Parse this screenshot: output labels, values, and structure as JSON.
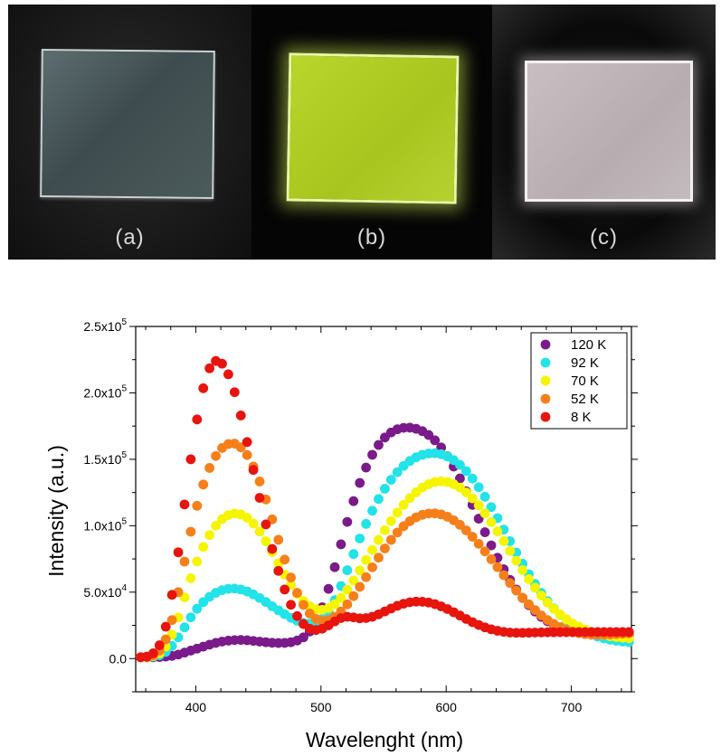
{
  "photos": {
    "panels": [
      {
        "label": "(a)"
      },
      {
        "label": "(b)"
      },
      {
        "label": "(c)"
      }
    ]
  },
  "chart_data": {
    "type": "scatter",
    "xlabel": "Wavelenght (nm)",
    "ylabel": "Intensity (a.u.)",
    "xlim": [
      352,
      748
    ],
    "ylim": [
      -25000,
      250000
    ],
    "x_ticks": [
      400,
      500,
      600,
      700
    ],
    "x_tick_labels": [
      "400",
      "500",
      "600",
      "700"
    ],
    "y_ticks": [
      0,
      50000,
      100000,
      150000,
      200000,
      250000
    ],
    "y_tick_labels": [
      {
        "mantissa": "0.0",
        "exponent": ""
      },
      {
        "mantissa": "5.0x10",
        "exponent": "4"
      },
      {
        "mantissa": "1.0x10",
        "exponent": "5"
      },
      {
        "mantissa": "1.5x10",
        "exponent": "5"
      },
      {
        "mantissa": "2.0x10",
        "exponent": "5"
      },
      {
        "mantissa": "2.5x10",
        "exponent": "5"
      }
    ],
    "legend_position": "top-right",
    "grid": false,
    "x": [
      356,
      361,
      366,
      371,
      376,
      381,
      386,
      391,
      396,
      401,
      406,
      411,
      416,
      421,
      426,
      431,
      436,
      441,
      446,
      451,
      456,
      461,
      466,
      471,
      476,
      481,
      486,
      491,
      496,
      501,
      506,
      511,
      516,
      521,
      526,
      531,
      536,
      541,
      546,
      551,
      556,
      561,
      566,
      571,
      576,
      581,
      586,
      591,
      596,
      601,
      606,
      611,
      616,
      621,
      626,
      631,
      636,
      641,
      646,
      651,
      656,
      661,
      666,
      671,
      676,
      681,
      686,
      691,
      696,
      701,
      706,
      711,
      716,
      721,
      726,
      731,
      736,
      741,
      746
    ],
    "series": [
      {
        "name": "120 K",
        "color": "#7b1a8a",
        "values": [
          1000,
          1000,
          1000,
          1200,
          1500,
          2000,
          3000,
          4500,
          6000,
          7500,
          9000,
          10500,
          11800,
          12800,
          13500,
          13900,
          14000,
          13800,
          13300,
          12800,
          12300,
          11900,
          11700,
          11800,
          12300,
          13600,
          16000,
          20400,
          27800,
          38600,
          52500,
          68800,
          86000,
          102900,
          118500,
          132200,
          143800,
          153400,
          160800,
          166400,
          170200,
          172600,
          173700,
          173800,
          173000,
          171200,
          168300,
          164300,
          158900,
          152300,
          144500,
          135600,
          125900,
          115700,
          105300,
          95100,
          85200,
          75900,
          67200,
          59200,
          52000,
          45700,
          40200,
          35400,
          31400,
          28100,
          25400,
          23200,
          21500,
          20200,
          19300,
          18600,
          18100,
          17800,
          17600,
          17400,
          17300,
          17300,
          17200
        ]
      },
      {
        "name": "92 K",
        "color": "#22e3e8",
        "values": [
          1000,
          1000,
          1500,
          2500,
          5000,
          9500,
          16000,
          23500,
          31000,
          37500,
          42500,
          46500,
          49500,
          51500,
          52500,
          52700,
          52000,
          50500,
          48300,
          45600,
          42600,
          39400,
          36300,
          33400,
          30700,
          28500,
          26900,
          26300,
          27200,
          30000,
          35600,
          44000,
          54600,
          66500,
          78700,
          90400,
          101400,
          111300,
          120100,
          127900,
          134600,
          140300,
          145000,
          148700,
          151500,
          153400,
          154400,
          154600,
          153800,
          152100,
          149400,
          145800,
          141100,
          135500,
          129000,
          121800,
          114000,
          105700,
          97100,
          88400,
          79800,
          71400,
          63500,
          56200,
          49400,
          43300,
          37800,
          33000,
          28900,
          25400,
          22500,
          20100,
          18100,
          16500,
          15200,
          14200,
          13400,
          12800,
          12400
        ]
      },
      {
        "name": "70 K",
        "color": "#f5f500",
        "values": [
          1000,
          1000,
          2000,
          4000,
          9000,
          18000,
          31000,
          46000,
          60500,
          73000,
          84000,
          93000,
          100000,
          105000,
          108000,
          109200,
          108500,
          106000,
          101600,
          95600,
          88300,
          80200,
          71600,
          63200,
          55500,
          48700,
          43300,
          39400,
          37200,
          36700,
          38000,
          41000,
          45700,
          51800,
          58800,
          66400,
          74200,
          81800,
          89300,
          96600,
          103500,
          109900,
          115700,
          120800,
          125200,
          128700,
          131300,
          132900,
          133400,
          132900,
          131300,
          128700,
          125100,
          120600,
          115300,
          109300,
          102700,
          95700,
          88400,
          81000,
          73700,
          66600,
          59800,
          53400,
          47500,
          42200,
          37400,
          33200,
          29600,
          26500,
          24000,
          21900,
          20200,
          18800,
          17700,
          16800,
          16200,
          15700,
          15300
        ]
      },
      {
        "name": "52 K",
        "color": "#f77f1a",
        "values": [
          1000,
          1000,
          2500,
          6000,
          14500,
          29000,
          50000,
          73000,
          95500,
          115000,
          131000,
          143500,
          152500,
          158500,
          161500,
          161800,
          159000,
          153200,
          144600,
          133300,
          119800,
          104800,
          89400,
          74500,
          61000,
          49500,
          40400,
          33900,
          29900,
          28400,
          29000,
          31500,
          35500,
          40800,
          47000,
          54000,
          61300,
          68700,
          76000,
          82900,
          89300,
          94900,
          99600,
          103400,
          106300,
          108200,
          109200,
          109300,
          108500,
          106800,
          104100,
          100700,
          96500,
          91700,
          86400,
          80700,
          74800,
          68800,
          62800,
          56900,
          51200,
          45900,
          40900,
          36500,
          32500,
          29000,
          26100,
          23700,
          21800,
          20300,
          19200,
          18400,
          18000,
          17900,
          17900,
          18100,
          18400,
          18700,
          19000
        ]
      },
      {
        "name": "8 K",
        "color": "#e8140e",
        "values": [
          1000,
          1500,
          4000,
          10000,
          24000,
          48000,
          80000,
          116000,
          150000,
          180000,
          203500,
          218500,
          224000,
          222000,
          214000,
          200500,
          183000,
          163000,
          142000,
          121000,
          101000,
          82500,
          66000,
          52000,
          40500,
          32000,
          26000,
          22500,
          21500,
          22500,
          25000,
          28000,
          30500,
          31500,
          31000,
          30300,
          30500,
          31500,
          33300,
          35500,
          37700,
          39700,
          41300,
          42400,
          42900,
          42800,
          42200,
          41000,
          39300,
          37300,
          34900,
          32400,
          29800,
          27400,
          25300,
          23500,
          22000,
          20900,
          20100,
          19600,
          19400,
          19400,
          19500,
          19600,
          19700,
          19800,
          19800,
          19900,
          19900,
          19900,
          20000,
          20000,
          20000,
          20000,
          20000,
          20000,
          20000,
          20000,
          20000
        ]
      }
    ]
  }
}
